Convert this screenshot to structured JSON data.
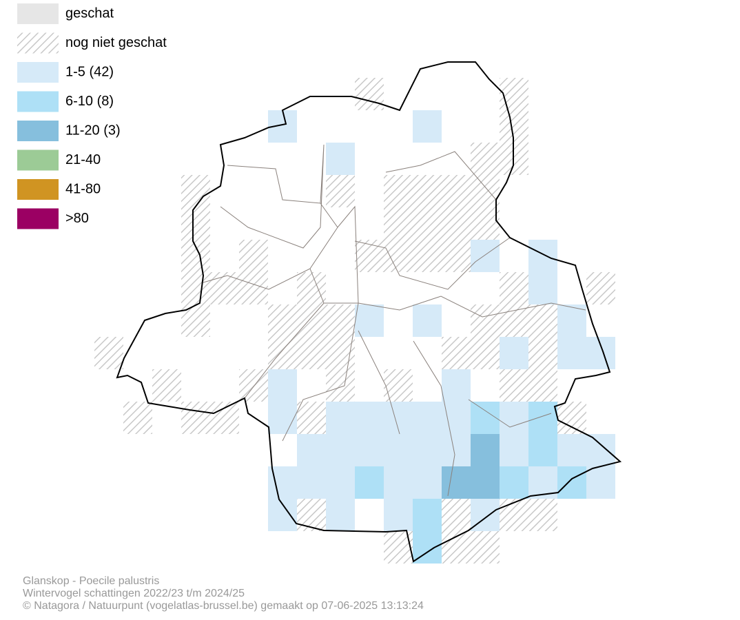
{
  "legend": {
    "items": [
      {
        "label": "geschat",
        "color": "#e6e6e6"
      },
      {
        "label": "nog niet geschat",
        "color": "hatch"
      },
      {
        "label": "1-5 (42)",
        "color": "#d6eaf8"
      },
      {
        "label": "6-10 (8)",
        "color": "#aee0f6"
      },
      {
        "label": "11-20 (3)",
        "color": "#86bfdd"
      },
      {
        "label": "21-40",
        "color": "#9ccb96"
      },
      {
        "label": "41-80",
        "color": "#d09422"
      },
      {
        "label": ">80",
        "color": "#9b0063"
      }
    ]
  },
  "footer": {
    "lines": [
      "Glanskop - Poecile palustris",
      "Wintervogel schattingen 2022/23 t/m 2024/25",
      "© Natagora / Natuurpunt (vogelatlas-brussel.be) gemaakt op 07-06-2025 13:13:24"
    ]
  }
}
